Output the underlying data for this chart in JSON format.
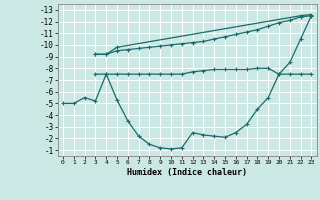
{
  "xlabel": "Humidex (Indice chaleur)",
  "background_color": "#cce8e4",
  "grid_color": "#ffffff",
  "line_color": "#1a6b6b",
  "xlim": [
    -0.5,
    23.5
  ],
  "ylim": [
    -13.5,
    -0.5
  ],
  "xticks": [
    0,
    1,
    2,
    3,
    4,
    5,
    6,
    7,
    8,
    9,
    10,
    11,
    12,
    13,
    14,
    15,
    16,
    17,
    18,
    19,
    20,
    21,
    22,
    23
  ],
  "yticks": [
    -1,
    -2,
    -3,
    -4,
    -5,
    -6,
    -7,
    -8,
    -9,
    -10,
    -11,
    -12,
    -13
  ],
  "line1_x": [
    0,
    1,
    2,
    3,
    4,
    5,
    6,
    7,
    8,
    9,
    10,
    11,
    12,
    13,
    14,
    15,
    16,
    17,
    18,
    19,
    20,
    21,
    22,
    23
  ],
  "line1_y": [
    -5.0,
    -5.0,
    -5.5,
    -5.2,
    -7.5,
    -5.3,
    -3.5,
    -2.2,
    -1.5,
    -1.2,
    -1.1,
    -1.2,
    -2.5,
    -2.3,
    -2.2,
    -2.1,
    -2.5,
    -3.2,
    -4.5,
    -5.5,
    -7.5,
    -8.5,
    -10.5,
    -12.5
  ],
  "line2_x": [
    3,
    4,
    5,
    6,
    7,
    8,
    9,
    10,
    11,
    12,
    13,
    14,
    15,
    16,
    17,
    18,
    19,
    20,
    21,
    22,
    23
  ],
  "line2_y": [
    -7.5,
    -7.5,
    -7.5,
    -7.5,
    -7.5,
    -7.5,
    -7.5,
    -7.5,
    -7.5,
    -7.7,
    -7.8,
    -7.9,
    -7.9,
    -7.9,
    -7.9,
    -8.0,
    -8.0,
    -7.5,
    -7.5,
    -7.5,
    -7.5
  ],
  "line3_x": [
    3,
    4,
    5,
    6,
    7,
    8,
    9,
    10,
    11,
    12,
    13,
    14,
    15,
    16,
    17,
    18,
    19,
    20,
    21,
    22,
    23
  ],
  "line3_y": [
    -9.2,
    -9.2,
    -9.5,
    -9.6,
    -9.7,
    -9.8,
    -9.9,
    -10.0,
    -10.1,
    -10.2,
    -10.3,
    -10.5,
    -10.7,
    -10.9,
    -11.1,
    -11.3,
    -11.6,
    -11.9,
    -12.1,
    -12.4,
    -12.5
  ],
  "line4_x": [
    3,
    4,
    5,
    22,
    23
  ],
  "line4_y": [
    -9.2,
    -9.2,
    -9.8,
    -12.5,
    -12.6
  ]
}
